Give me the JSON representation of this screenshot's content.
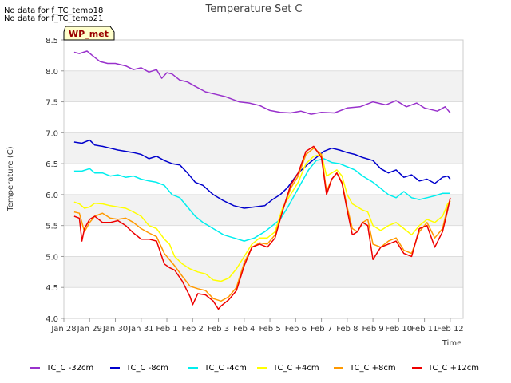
{
  "chart_data": {
    "type": "line",
    "title": "Temperature Set C",
    "xlabel": "Time",
    "ylabel": "Temperature (C)",
    "ylim": [
      4.0,
      8.5
    ],
    "yticks": [
      "4.0",
      "4.5",
      "5.0",
      "5.5",
      "6.0",
      "6.5",
      "7.0",
      "7.5",
      "8.0",
      "8.5"
    ],
    "xlim": [
      0,
      15.5
    ],
    "xticks": [
      "Jan 28",
      "Jan 29",
      "Jan 30",
      "Jan 31",
      "Feb 1",
      "Feb 2",
      "Feb 3",
      "Feb 4",
      "Feb 5",
      "Feb 6",
      "Feb 7",
      "Feb 8",
      "Feb 9",
      "Feb 10",
      "Feb 11",
      "Feb 12"
    ],
    "notes": [
      "No data for f_TC_temp18",
      "No data for f_TC_temp21"
    ],
    "site_label": "WP_met",
    "series": [
      {
        "name": "TC_C -32cm",
        "color": "#9932CC",
        "x": [
          0.4,
          0.6,
          0.9,
          1.1,
          1.4,
          1.7,
          2.0,
          2.4,
          2.7,
          3.0,
          3.3,
          3.6,
          3.8,
          4.0,
          4.2,
          4.5,
          4.8,
          5.1,
          5.5,
          5.9,
          6.3,
          6.8,
          7.2,
          7.6,
          8.0,
          8.4,
          8.8,
          9.2,
          9.6,
          10.0,
          10.5,
          11.0,
          11.5,
          12.0,
          12.5,
          12.9,
          13.3,
          13.7,
          14.0,
          14.5,
          14.8,
          15.0
        ],
        "values": [
          8.3,
          8.28,
          8.32,
          8.25,
          8.15,
          8.12,
          8.12,
          8.08,
          8.02,
          8.05,
          7.98,
          8.02,
          7.88,
          7.97,
          7.95,
          7.85,
          7.82,
          7.75,
          7.66,
          7.62,
          7.58,
          7.5,
          7.48,
          7.44,
          7.36,
          7.33,
          7.32,
          7.35,
          7.3,
          7.33,
          7.32,
          7.4,
          7.42,
          7.5,
          7.45,
          7.52,
          7.42,
          7.48,
          7.4,
          7.35,
          7.42,
          7.32
        ]
      },
      {
        "name": "TC_C -8cm",
        "color": "#0000CC",
        "x": [
          0.4,
          0.7,
          1.0,
          1.2,
          1.5,
          1.8,
          2.1,
          2.4,
          2.7,
          3.0,
          3.3,
          3.6,
          3.9,
          4.2,
          4.5,
          4.8,
          5.1,
          5.4,
          5.8,
          6.2,
          6.6,
          7.0,
          7.4,
          7.8,
          8.1,
          8.4,
          8.7,
          9.1,
          9.5,
          9.8,
          10.1,
          10.4,
          10.7,
          11.0,
          11.3,
          11.6,
          12.0,
          12.3,
          12.6,
          12.9,
          13.2,
          13.5,
          13.8,
          14.1,
          14.4,
          14.7,
          14.9,
          15.0
        ],
        "values": [
          6.85,
          6.83,
          6.88,
          6.8,
          6.78,
          6.75,
          6.72,
          6.7,
          6.68,
          6.65,
          6.58,
          6.62,
          6.55,
          6.5,
          6.48,
          6.35,
          6.2,
          6.15,
          6.0,
          5.9,
          5.82,
          5.78,
          5.8,
          5.82,
          5.92,
          6.0,
          6.12,
          6.35,
          6.5,
          6.6,
          6.7,
          6.75,
          6.72,
          6.68,
          6.65,
          6.6,
          6.55,
          6.42,
          6.35,
          6.4,
          6.28,
          6.32,
          6.22,
          6.25,
          6.18,
          6.28,
          6.3,
          6.25
        ]
      },
      {
        "name": "TC_C -4cm",
        "color": "#00EEEE",
        "x": [
          0.4,
          0.7,
          1.0,
          1.2,
          1.5,
          1.8,
          2.1,
          2.4,
          2.7,
          3.0,
          3.3,
          3.6,
          3.9,
          4.2,
          4.5,
          4.8,
          5.1,
          5.4,
          5.8,
          6.2,
          6.6,
          7.0,
          7.4,
          7.8,
          8.1,
          8.4,
          8.7,
          9.1,
          9.5,
          9.8,
          10.1,
          10.4,
          10.7,
          11.0,
          11.3,
          11.6,
          12.0,
          12.3,
          12.6,
          12.9,
          13.2,
          13.5,
          13.8,
          14.1,
          14.4,
          14.7,
          14.9,
          15.0
        ],
        "values": [
          6.38,
          6.38,
          6.42,
          6.35,
          6.35,
          6.3,
          6.32,
          6.28,
          6.3,
          6.25,
          6.22,
          6.2,
          6.15,
          6.0,
          5.95,
          5.8,
          5.65,
          5.55,
          5.45,
          5.35,
          5.3,
          5.25,
          5.3,
          5.4,
          5.5,
          5.6,
          5.8,
          6.1,
          6.4,
          6.55,
          6.58,
          6.52,
          6.5,
          6.45,
          6.4,
          6.3,
          6.2,
          6.1,
          6.0,
          5.95,
          6.05,
          5.95,
          5.92,
          5.95,
          5.98,
          6.02,
          6.02,
          6.02
        ]
      },
      {
        "name": "TC_C +4cm",
        "color": "#FFFF00",
        "x": [
          0.4,
          0.6,
          0.8,
          1.0,
          1.2,
          1.5,
          1.8,
          2.1,
          2.4,
          2.7,
          3.0,
          3.3,
          3.6,
          3.9,
          4.1,
          4.3,
          4.6,
          4.9,
          5.2,
          5.5,
          5.8,
          6.1,
          6.4,
          6.7,
          7.0,
          7.3,
          7.6,
          7.9,
          8.2,
          8.5,
          8.8,
          9.1,
          9.4,
          9.7,
          10.0,
          10.2,
          10.4,
          10.6,
          10.8,
          11.0,
          11.2,
          11.4,
          11.6,
          11.8,
          12.0,
          12.3,
          12.6,
          12.9,
          13.2,
          13.5,
          13.8,
          14.1,
          14.4,
          14.7,
          14.9,
          15.0
        ],
        "values": [
          5.88,
          5.85,
          5.78,
          5.8,
          5.86,
          5.85,
          5.82,
          5.8,
          5.78,
          5.72,
          5.65,
          5.5,
          5.45,
          5.28,
          5.2,
          5.0,
          4.88,
          4.8,
          4.75,
          4.72,
          4.62,
          4.6,
          4.65,
          4.8,
          5.0,
          5.2,
          5.3,
          5.3,
          5.4,
          5.8,
          6.0,
          6.2,
          6.5,
          6.62,
          6.65,
          6.3,
          6.35,
          6.4,
          6.3,
          6.0,
          5.85,
          5.8,
          5.75,
          5.72,
          5.5,
          5.42,
          5.5,
          5.55,
          5.45,
          5.35,
          5.5,
          5.6,
          5.55,
          5.65,
          5.85,
          5.9
        ]
      },
      {
        "name": "TC_C +8cm",
        "color": "#FF9900",
        "x": [
          0.4,
          0.6,
          0.8,
          1.0,
          1.2,
          1.5,
          1.8,
          2.1,
          2.4,
          2.7,
          3.0,
          3.3,
          3.6,
          3.9,
          4.1,
          4.3,
          4.6,
          4.9,
          5.2,
          5.5,
          5.8,
          6.1,
          6.4,
          6.7,
          7.0,
          7.3,
          7.6,
          7.9,
          8.2,
          8.5,
          8.8,
          9.1,
          9.4,
          9.7,
          10.0,
          10.2,
          10.4,
          10.6,
          10.8,
          11.0,
          11.2,
          11.4,
          11.6,
          11.8,
          12.0,
          12.3,
          12.6,
          12.9,
          13.2,
          13.5,
          13.8,
          14.1,
          14.4,
          14.7,
          14.9,
          15.0
        ],
        "values": [
          5.72,
          5.7,
          5.4,
          5.55,
          5.65,
          5.7,
          5.62,
          5.6,
          5.62,
          5.55,
          5.45,
          5.38,
          5.32,
          5.05,
          4.95,
          4.85,
          4.68,
          4.52,
          4.48,
          4.45,
          4.32,
          4.28,
          4.35,
          4.5,
          4.9,
          5.15,
          5.22,
          5.2,
          5.35,
          5.75,
          6.1,
          6.3,
          6.65,
          6.75,
          6.65,
          6.05,
          6.25,
          6.35,
          6.2,
          5.8,
          5.45,
          5.4,
          5.55,
          5.6,
          5.2,
          5.15,
          5.25,
          5.3,
          5.1,
          5.05,
          5.4,
          5.55,
          5.3,
          5.45,
          5.8,
          5.9
        ]
      },
      {
        "name": "TC_C +12cm",
        "color": "#EE0000",
        "x": [
          0.4,
          0.6,
          0.7,
          0.8,
          1.0,
          1.2,
          1.5,
          1.8,
          2.1,
          2.4,
          2.7,
          3.0,
          3.3,
          3.6,
          3.9,
          4.1,
          4.3,
          4.6,
          4.9,
          5.0,
          5.2,
          5.5,
          5.8,
          6.0,
          6.1,
          6.4,
          6.7,
          7.0,
          7.3,
          7.6,
          7.9,
          8.2,
          8.5,
          8.8,
          9.1,
          9.4,
          9.7,
          10.0,
          10.2,
          10.4,
          10.6,
          10.8,
          11.0,
          11.2,
          11.4,
          11.6,
          11.8,
          12.0,
          12.3,
          12.6,
          12.9,
          13.2,
          13.5,
          13.8,
          14.1,
          14.4,
          14.7,
          14.9,
          15.0
        ],
        "values": [
          5.65,
          5.62,
          5.25,
          5.45,
          5.6,
          5.65,
          5.55,
          5.55,
          5.58,
          5.5,
          5.38,
          5.28,
          5.28,
          5.25,
          4.88,
          4.82,
          4.78,
          4.6,
          4.35,
          4.22,
          4.4,
          4.38,
          4.28,
          4.15,
          4.2,
          4.3,
          4.45,
          4.85,
          5.15,
          5.2,
          5.15,
          5.3,
          5.75,
          6.15,
          6.35,
          6.7,
          6.78,
          6.6,
          6.0,
          6.25,
          6.35,
          6.18,
          5.75,
          5.35,
          5.4,
          5.55,
          5.5,
          4.95,
          5.15,
          5.2,
          5.25,
          5.05,
          5.0,
          5.45,
          5.5,
          5.15,
          5.4,
          5.75,
          5.95
        ]
      }
    ]
  }
}
